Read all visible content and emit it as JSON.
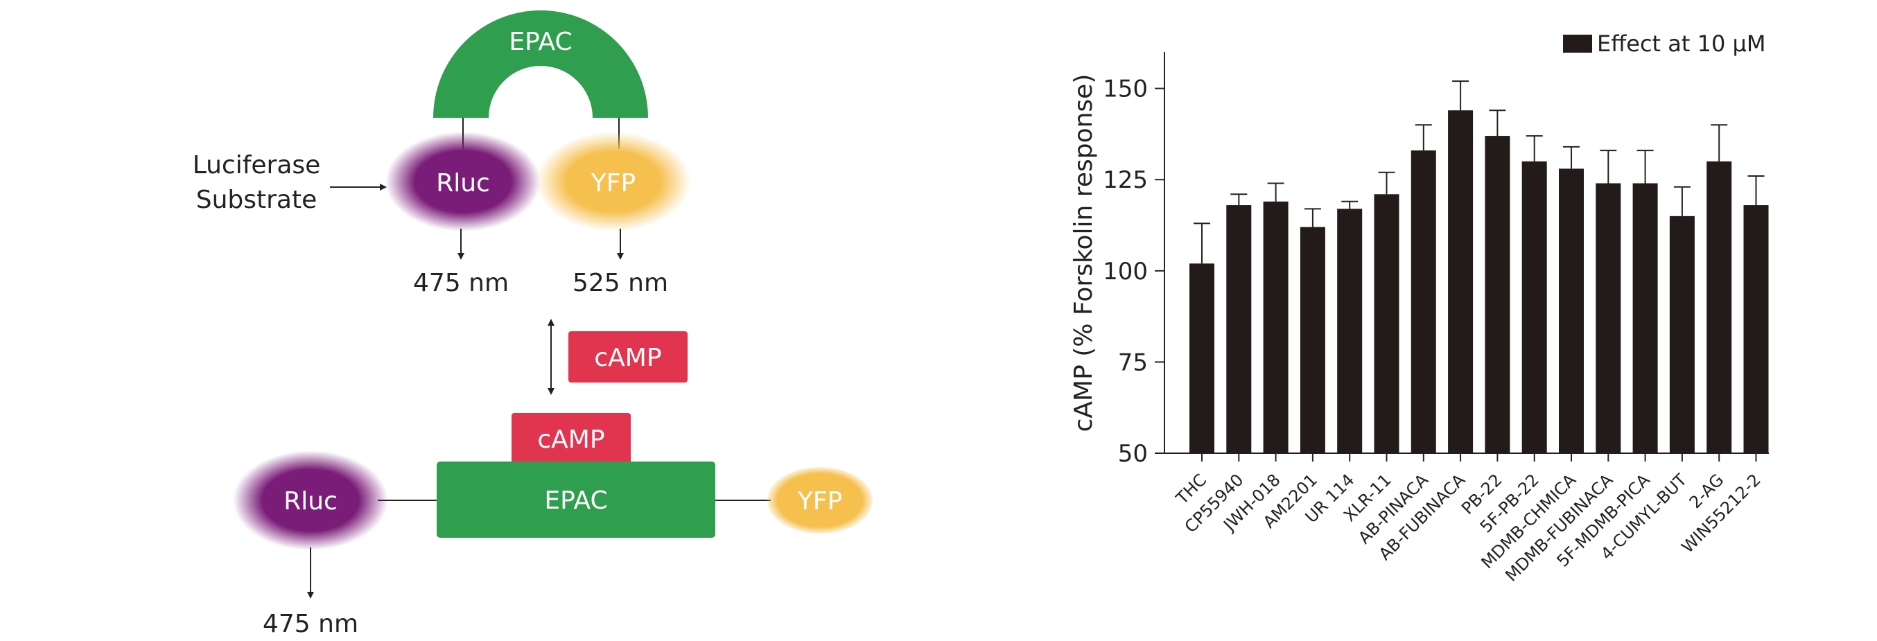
{
  "colors": {
    "epac_green": "#2f9e4e",
    "camp_red": "#e0344f",
    "rluc_purple": "#7a1d78",
    "yfp_orange": "#f5c04e",
    "bar_fill": "#231a1a",
    "ink": "#222222"
  },
  "diagram": {
    "top_epac_label": "EPAC",
    "top_rluc_label": "Rluc",
    "top_yfp_label": "YFP",
    "substrate_line1": "Luciferase",
    "substrate_line2": "Substrate",
    "top_emission_rluc": "475 nm",
    "top_emission_yfp": "525 nm",
    "free_camp_label": "cAMP",
    "bound_camp_label": "cAMP",
    "bottom_epac_label": "EPAC",
    "bottom_rluc_label": "Rluc",
    "bottom_yfp_label": "YFP",
    "bottom_emission_rluc": "475 nm"
  },
  "chart_data": {
    "type": "bar",
    "ylabel": "cAMP (% Forskolin response)",
    "ylim": [
      50,
      160
    ],
    "yticks": [
      50,
      75,
      100,
      125,
      150
    ],
    "legend": {
      "label": "Effect at 10 µM",
      "position": "top-right"
    },
    "categories": [
      "THC",
      "CP55940",
      "JWH-018",
      "AM2201",
      "UR 114",
      "XLR-11",
      "AB-PINACA",
      "AB-FUBINACA",
      "PB-22",
      "5F-PB-22",
      "MDMB-CHMICA",
      "MDMB-FUBINACA",
      "5F-MDMB-PICA",
      "4-CUMYL-BUT",
      "2-AG",
      "WIN55212-2"
    ],
    "values": [
      102,
      118,
      119,
      112,
      117,
      121,
      133,
      144,
      137,
      130,
      128,
      124,
      124,
      115,
      130,
      118
    ],
    "errors": [
      11,
      3,
      5,
      5,
      2,
      6,
      7,
      8,
      7,
      7,
      6,
      9,
      9,
      8,
      10,
      8
    ]
  }
}
